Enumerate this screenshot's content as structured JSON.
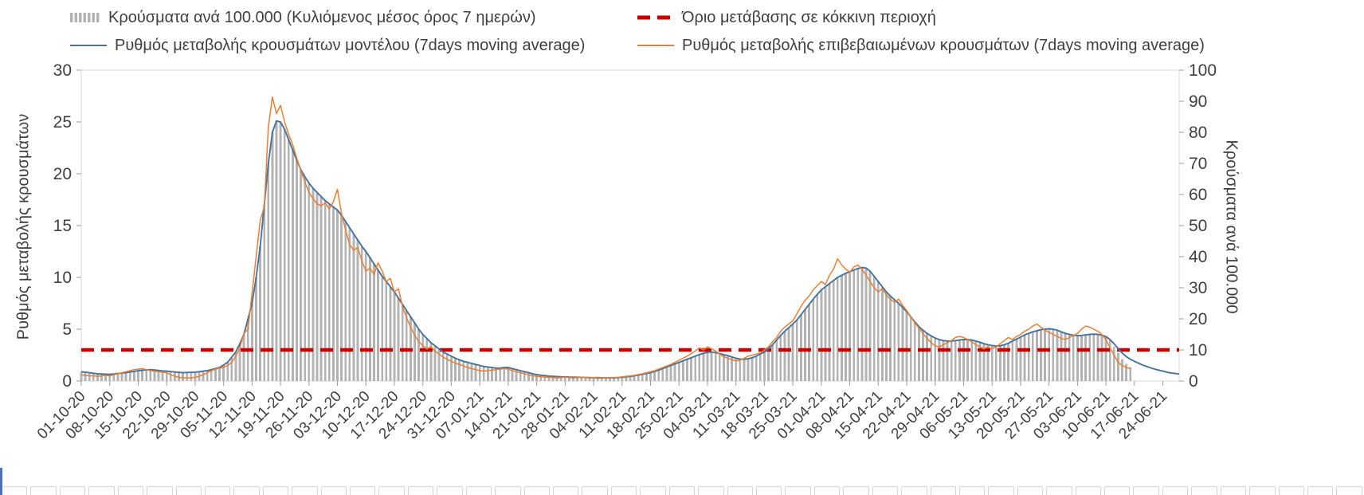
{
  "axes": {
    "left": {
      "title": "Ρυθμός μεταβολής κρουσμάτων",
      "ticks": [
        0,
        5,
        10,
        15,
        20,
        25,
        30
      ],
      "range": [
        0,
        30
      ]
    },
    "right": {
      "title": "Κρούσματα ανά 100.000",
      "ticks": [
        0,
        10,
        20,
        30,
        40,
        50,
        60,
        70,
        80,
        90,
        100
      ],
      "range": [
        0,
        100
      ]
    },
    "x": {
      "tick_interval_days": 7,
      "tick_labels": [
        "01-10-20",
        "08-10-20",
        "15-10-20",
        "22-10-20",
        "29-10-20",
        "05-11-20",
        "12-11-20",
        "19-11-20",
        "26-11-20",
        "03-12-20",
        "10-12-20",
        "17-12-20",
        "24-12-20",
        "31-12-20",
        "07-01-21",
        "14-01-21",
        "21-01-21",
        "28-01-21",
        "04-02-21",
        "11-02-21",
        "18-02-21",
        "25-02-21",
        "04-03-21",
        "11-03-21",
        "18-03-21",
        "25-03-21",
        "01-04-21",
        "08-04-21",
        "15-04-21",
        "22-04-21",
        "29-04-21",
        "06-05-21",
        "13-05-21",
        "20-05-21",
        "27-05-21",
        "03-06-21",
        "10-06-21",
        "17-06-21",
        "24-06-21"
      ]
    }
  },
  "decor": {
    "strip_border": "#d6d6d6",
    "left_accent": "#4472c4"
  },
  "chart_data": {
    "type": "bar",
    "note": "daily values, day 0 = 01-10-20, one value per day",
    "x_start_label": "01-10-20",
    "ylim_left": [
      0,
      30
    ],
    "ylim_right": [
      0,
      100
    ],
    "grid": false,
    "legend_position": "top",
    "threshold": {
      "label": "Όριο μετάβασης σε κόκκινη περιοχή",
      "value_left_axis": 3,
      "value_right_axis": 10,
      "color": "#c80000",
      "style": "dashed"
    },
    "series": [
      {
        "name": "Κρούσματα ανά 100.000 (Κυλιόμενος μέσος όρος 7 ημερών)",
        "type": "bar",
        "axis": "right",
        "color": "#b3b3b3",
        "values": [
          3.0,
          2.8,
          2.7,
          2.5,
          2.3,
          2.3,
          2.2,
          2.2,
          2.3,
          2.4,
          2.5,
          2.7,
          2.9,
          3.1,
          3.3,
          3.4,
          3.6,
          3.7,
          3.5,
          3.4,
          3.3,
          3.2,
          3.0,
          2.9,
          2.8,
          2.7,
          2.7,
          2.8,
          2.8,
          3.0,
          3.2,
          3.3,
          3.7,
          4.0,
          4.3,
          5.2,
          6.0,
          7.7,
          9.3,
          12.0,
          15.0,
          20.0,
          25.0,
          33.3,
          43.3,
          56.7,
          70.0,
          80.0,
          83.7,
          83.3,
          81.0,
          77.7,
          74.3,
          71.0,
          68.0,
          65.7,
          63.7,
          62.0,
          60.7,
          59.3,
          58.0,
          57.0,
          56.0,
          55.0,
          53.3,
          51.3,
          49.3,
          47.3,
          45.3,
          43.3,
          41.7,
          39.7,
          37.7,
          35.7,
          33.7,
          32.0,
          30.3,
          28.7,
          26.7,
          24.7,
          22.7,
          20.7,
          18.7,
          16.7,
          15.0,
          13.7,
          12.3,
          11.3,
          10.3,
          9.3,
          8.7,
          8.0,
          7.3,
          6.8,
          6.3,
          6.0,
          5.7,
          5.3,
          5.0,
          4.7,
          4.5,
          4.3,
          4.2,
          4.2,
          4.3,
          4.3,
          4.0,
          3.7,
          3.3,
          3.0,
          2.7,
          2.3,
          2.1,
          1.9,
          1.7,
          1.6,
          1.5,
          1.4,
          1.4,
          1.3,
          1.3,
          1.2,
          1.2,
          1.2,
          1.1,
          1.1,
          1.1,
          1.0,
          1.0,
          1.0,
          1.0,
          1.0,
          1.1,
          1.2,
          1.3,
          1.5,
          1.7,
          1.9,
          2.2,
          2.4,
          2.7,
          3.1,
          3.5,
          4.0,
          4.5,
          5.0,
          5.5,
          6.0,
          6.5,
          7.0,
          7.5,
          8.0,
          8.5,
          8.9,
          9.3,
          9.3,
          9.2,
          8.8,
          8.5,
          8.2,
          7.7,
          7.3,
          7.1,
          7.0,
          7.2,
          7.5,
          8.0,
          8.7,
          9.3,
          10.3,
          11.7,
          13.2,
          14.7,
          16.0,
          17.2,
          18.3,
          19.7,
          21.3,
          23.0,
          24.7,
          26.3,
          27.8,
          29.3,
          30.3,
          31.3,
          32.3,
          33.3,
          34.0,
          34.7,
          35.2,
          35.7,
          36.2,
          36.5,
          36.3,
          35.3,
          33.7,
          32.0,
          30.3,
          28.7,
          27.3,
          26.2,
          25.0,
          23.7,
          22.3,
          20.7,
          19.0,
          17.5,
          16.3,
          15.3,
          14.5,
          13.8,
          13.3,
          13.0,
          12.8,
          12.8,
          13.0,
          13.2,
          13.3,
          13.3,
          13.2,
          12.8,
          12.5,
          12.0,
          11.7,
          11.4,
          11.3,
          11.3,
          11.7,
          12.2,
          12.8,
          13.5,
          14.2,
          14.8,
          15.3,
          15.8,
          16.2,
          16.5,
          16.7,
          16.8,
          16.7,
          16.3,
          15.8,
          15.3,
          15.0,
          14.7,
          14.6,
          14.7,
          14.8,
          15.0,
          15.1,
          15.0,
          14.7,
          14.3,
          13.3,
          11.0,
          9.0,
          7.0,
          5.5,
          4.5,
          null,
          null,
          null,
          null,
          null,
          null,
          null,
          null,
          null,
          null,
          null,
          null
        ]
      },
      {
        "name": "Ρυθμός μεταβολής κρουσμάτων μοντέλου (7days moving average)",
        "type": "line",
        "axis": "left",
        "color": "#46739e",
        "values": [
          0.9,
          0.85,
          0.8,
          0.75,
          0.7,
          0.68,
          0.66,
          0.65,
          0.68,
          0.72,
          0.76,
          0.8,
          0.87,
          0.93,
          1.0,
          1.03,
          1.07,
          1.1,
          1.06,
          1.02,
          0.98,
          0.95,
          0.91,
          0.87,
          0.84,
          0.8,
          0.82,
          0.84,
          0.85,
          0.9,
          0.95,
          1.0,
          1.1,
          1.2,
          1.3,
          1.55,
          1.8,
          2.3,
          2.8,
          3.6,
          4.5,
          6.0,
          7.5,
          10.0,
          13.0,
          17.0,
          21.0,
          24.0,
          25.1,
          25.0,
          24.3,
          23.3,
          22.3,
          21.3,
          20.4,
          19.7,
          19.1,
          18.6,
          18.2,
          17.8,
          17.4,
          17.1,
          16.8,
          16.5,
          16.0,
          15.4,
          14.8,
          14.2,
          13.6,
          13.0,
          12.5,
          11.9,
          11.3,
          10.7,
          10.1,
          9.6,
          9.1,
          8.6,
          8.0,
          7.4,
          6.8,
          6.2,
          5.6,
          5.0,
          4.5,
          4.1,
          3.7,
          3.4,
          3.1,
          2.8,
          2.6,
          2.4,
          2.2,
          2.05,
          1.9,
          1.8,
          1.7,
          1.6,
          1.5,
          1.4,
          1.35,
          1.3,
          1.25,
          1.25,
          1.3,
          1.3,
          1.2,
          1.1,
          1.0,
          0.9,
          0.8,
          0.7,
          0.62,
          0.56,
          0.52,
          0.48,
          0.45,
          0.43,
          0.41,
          0.4,
          0.38,
          0.37,
          0.36,
          0.35,
          0.34,
          0.33,
          0.32,
          0.31,
          0.31,
          0.3,
          0.3,
          0.31,
          0.33,
          0.36,
          0.4,
          0.45,
          0.5,
          0.57,
          0.65,
          0.72,
          0.8,
          0.92,
          1.05,
          1.2,
          1.35,
          1.5,
          1.65,
          1.8,
          1.95,
          2.1,
          2.25,
          2.4,
          2.55,
          2.68,
          2.78,
          2.8,
          2.75,
          2.65,
          2.55,
          2.45,
          2.32,
          2.2,
          2.12,
          2.1,
          2.15,
          2.25,
          2.4,
          2.6,
          2.8,
          3.1,
          3.5,
          3.95,
          4.4,
          4.8,
          5.15,
          5.5,
          5.9,
          6.4,
          6.9,
          7.4,
          7.9,
          8.35,
          8.8,
          9.1,
          9.4,
          9.7,
          10.0,
          10.2,
          10.4,
          10.55,
          10.7,
          10.85,
          10.95,
          10.9,
          10.6,
          10.1,
          9.6,
          9.1,
          8.6,
          8.2,
          7.85,
          7.5,
          7.1,
          6.7,
          6.2,
          5.7,
          5.25,
          4.9,
          4.6,
          4.35,
          4.15,
          4.0,
          3.9,
          3.85,
          3.85,
          3.9,
          3.95,
          4.0,
          4.0,
          3.95,
          3.85,
          3.75,
          3.6,
          3.5,
          3.42,
          3.38,
          3.4,
          3.5,
          3.65,
          3.85,
          4.05,
          4.25,
          4.45,
          4.6,
          4.75,
          4.85,
          4.95,
          5.0,
          5.05,
          5.0,
          4.9,
          4.75,
          4.6,
          4.5,
          4.42,
          4.38,
          4.4,
          4.45,
          4.5,
          4.52,
          4.5,
          4.42,
          4.3,
          4.0,
          3.6,
          3.15,
          2.7,
          2.35,
          2.1,
          1.9,
          1.72,
          1.55,
          1.4,
          1.27,
          1.15,
          1.05,
          0.95,
          0.85,
          0.78,
          0.72,
          0.68
        ]
      },
      {
        "name": "Ρυθμός μεταβολής επιβεβαιωμένων κρουσμάτων (7days moving average)",
        "type": "line",
        "axis": "left",
        "color": "#ed7d31",
        "values": [
          0.6,
          0.55,
          0.5,
          0.5,
          0.45,
          0.5,
          0.55,
          0.5,
          0.6,
          0.7,
          0.8,
          0.9,
          1.0,
          1.1,
          1.15,
          1.2,
          1.1,
          1.0,
          0.95,
          0.9,
          0.85,
          0.8,
          0.6,
          0.45,
          0.35,
          0.3,
          0.3,
          0.3,
          0.35,
          0.45,
          0.6,
          0.8,
          1.0,
          1.15,
          1.25,
          1.3,
          1.5,
          1.8,
          2.4,
          3.2,
          4.6,
          5.0,
          8.5,
          12.0,
          15.5,
          16.8,
          24.5,
          27.4,
          25.8,
          26.6,
          25.0,
          23.8,
          22.8,
          21.5,
          20.3,
          19.2,
          18.2,
          17.6,
          17.1,
          16.9,
          17.2,
          16.6,
          17.3,
          18.5,
          16.2,
          14.6,
          13.2,
          12.6,
          12.9,
          11.6,
          10.6,
          10.9,
          10.3,
          11.4,
          10.6,
          9.6,
          9.9,
          8.6,
          8.9,
          7.2,
          6.1,
          5.2,
          4.4,
          3.8,
          3.4,
          3.1,
          3.3,
          2.9,
          2.6,
          2.3,
          2.1,
          1.9,
          1.75,
          1.6,
          1.45,
          1.3,
          1.2,
          1.1,
          1.0,
          0.95,
          1.0,
          1.05,
          1.1,
          1.15,
          1.2,
          1.15,
          1.0,
          0.9,
          0.8,
          0.7,
          0.6,
          0.5,
          0.45,
          0.4,
          0.38,
          0.35,
          0.32,
          0.3,
          0.32,
          0.35,
          0.32,
          0.3,
          0.32,
          0.35,
          0.32,
          0.3,
          0.32,
          0.35,
          0.32,
          0.3,
          0.3,
          0.32,
          0.35,
          0.4,
          0.45,
          0.5,
          0.55,
          0.62,
          0.7,
          0.8,
          0.9,
          1.0,
          1.15,
          1.3,
          1.45,
          1.6,
          1.8,
          2.0,
          2.2,
          2.4,
          2.65,
          2.9,
          3.2,
          3.0,
          3.3,
          3.1,
          2.9,
          2.6,
          2.35,
          2.2,
          2.05,
          1.95,
          2.0,
          2.2,
          2.4,
          2.5,
          2.6,
          2.7,
          3.0,
          3.3,
          3.8,
          4.2,
          4.8,
          5.2,
          5.5,
          5.8,
          6.5,
          7.2,
          7.8,
          8.2,
          8.8,
          9.2,
          9.6,
          9.3,
          10.2,
          10.8,
          11.8,
          11.2,
          10.8,
          10.5,
          11.0,
          11.2,
          10.8,
          10.2,
          9.6,
          9.0,
          8.6,
          8.9,
          8.3,
          7.9,
          7.6,
          7.9,
          7.3,
          6.8,
          6.2,
          5.6,
          5.1,
          4.6,
          4.1,
          3.7,
          3.4,
          3.3,
          3.5,
          3.7,
          3.9,
          4.2,
          4.3,
          4.2,
          4.0,
          3.8,
          3.5,
          3.3,
          3.1,
          3.3,
          3.1,
          3.3,
          3.6,
          3.9,
          4.2,
          4.0,
          4.3,
          4.5,
          4.8,
          5.0,
          5.3,
          5.5,
          5.2,
          4.9,
          4.7,
          4.5,
          4.3,
          4.1,
          4.0,
          4.2,
          4.4,
          4.6,
          5.0,
          5.3,
          5.2,
          5.0,
          4.8,
          4.5,
          4.0,
          3.2,
          2.5,
          1.8,
          1.5,
          1.3,
          1.2,
          null,
          null,
          null,
          null,
          null,
          null,
          null,
          null,
          null,
          null,
          null,
          null
        ]
      }
    ]
  }
}
